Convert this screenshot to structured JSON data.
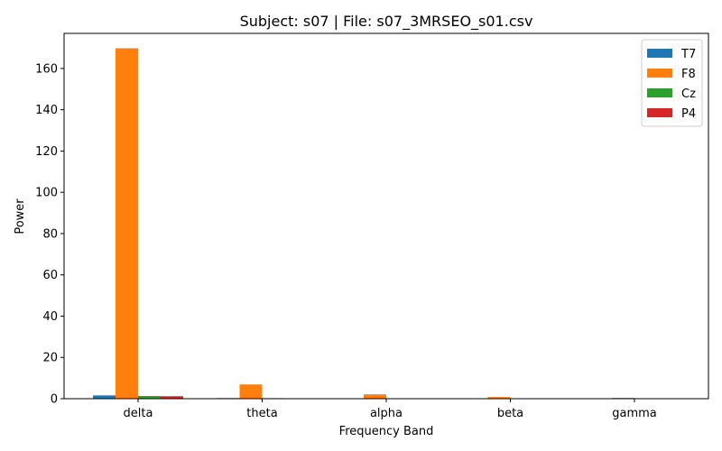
{
  "chart_data": {
    "type": "bar",
    "title": "Subject: s07 | File: s07_3MRSEO_s01.csv",
    "xlabel": "Frequency Band",
    "ylabel": "Power",
    "categories": [
      "delta",
      "theta",
      "alpha",
      "beta",
      "gamma"
    ],
    "ylim": [
      0,
      177
    ],
    "yticks": [
      0,
      20,
      40,
      60,
      80,
      100,
      120,
      140,
      160
    ],
    "grid": false,
    "legend_position": "top-right",
    "series": [
      {
        "name": "T7",
        "color": "#1f77b4",
        "values": [
          1.6,
          0.3,
          0.2,
          0.15,
          0.1
        ]
      },
      {
        "name": "F8",
        "color": "#ff7f0e",
        "values": [
          169.8,
          6.9,
          2.1,
          0.8,
          0.4
        ]
      },
      {
        "name": "Cz",
        "color": "#2ca02c",
        "values": [
          1.3,
          0.25,
          0.2,
          0.12,
          0.1
        ]
      },
      {
        "name": "P4",
        "color": "#d62728",
        "values": [
          1.2,
          0.2,
          0.15,
          0.1,
          0.1
        ]
      }
    ]
  }
}
